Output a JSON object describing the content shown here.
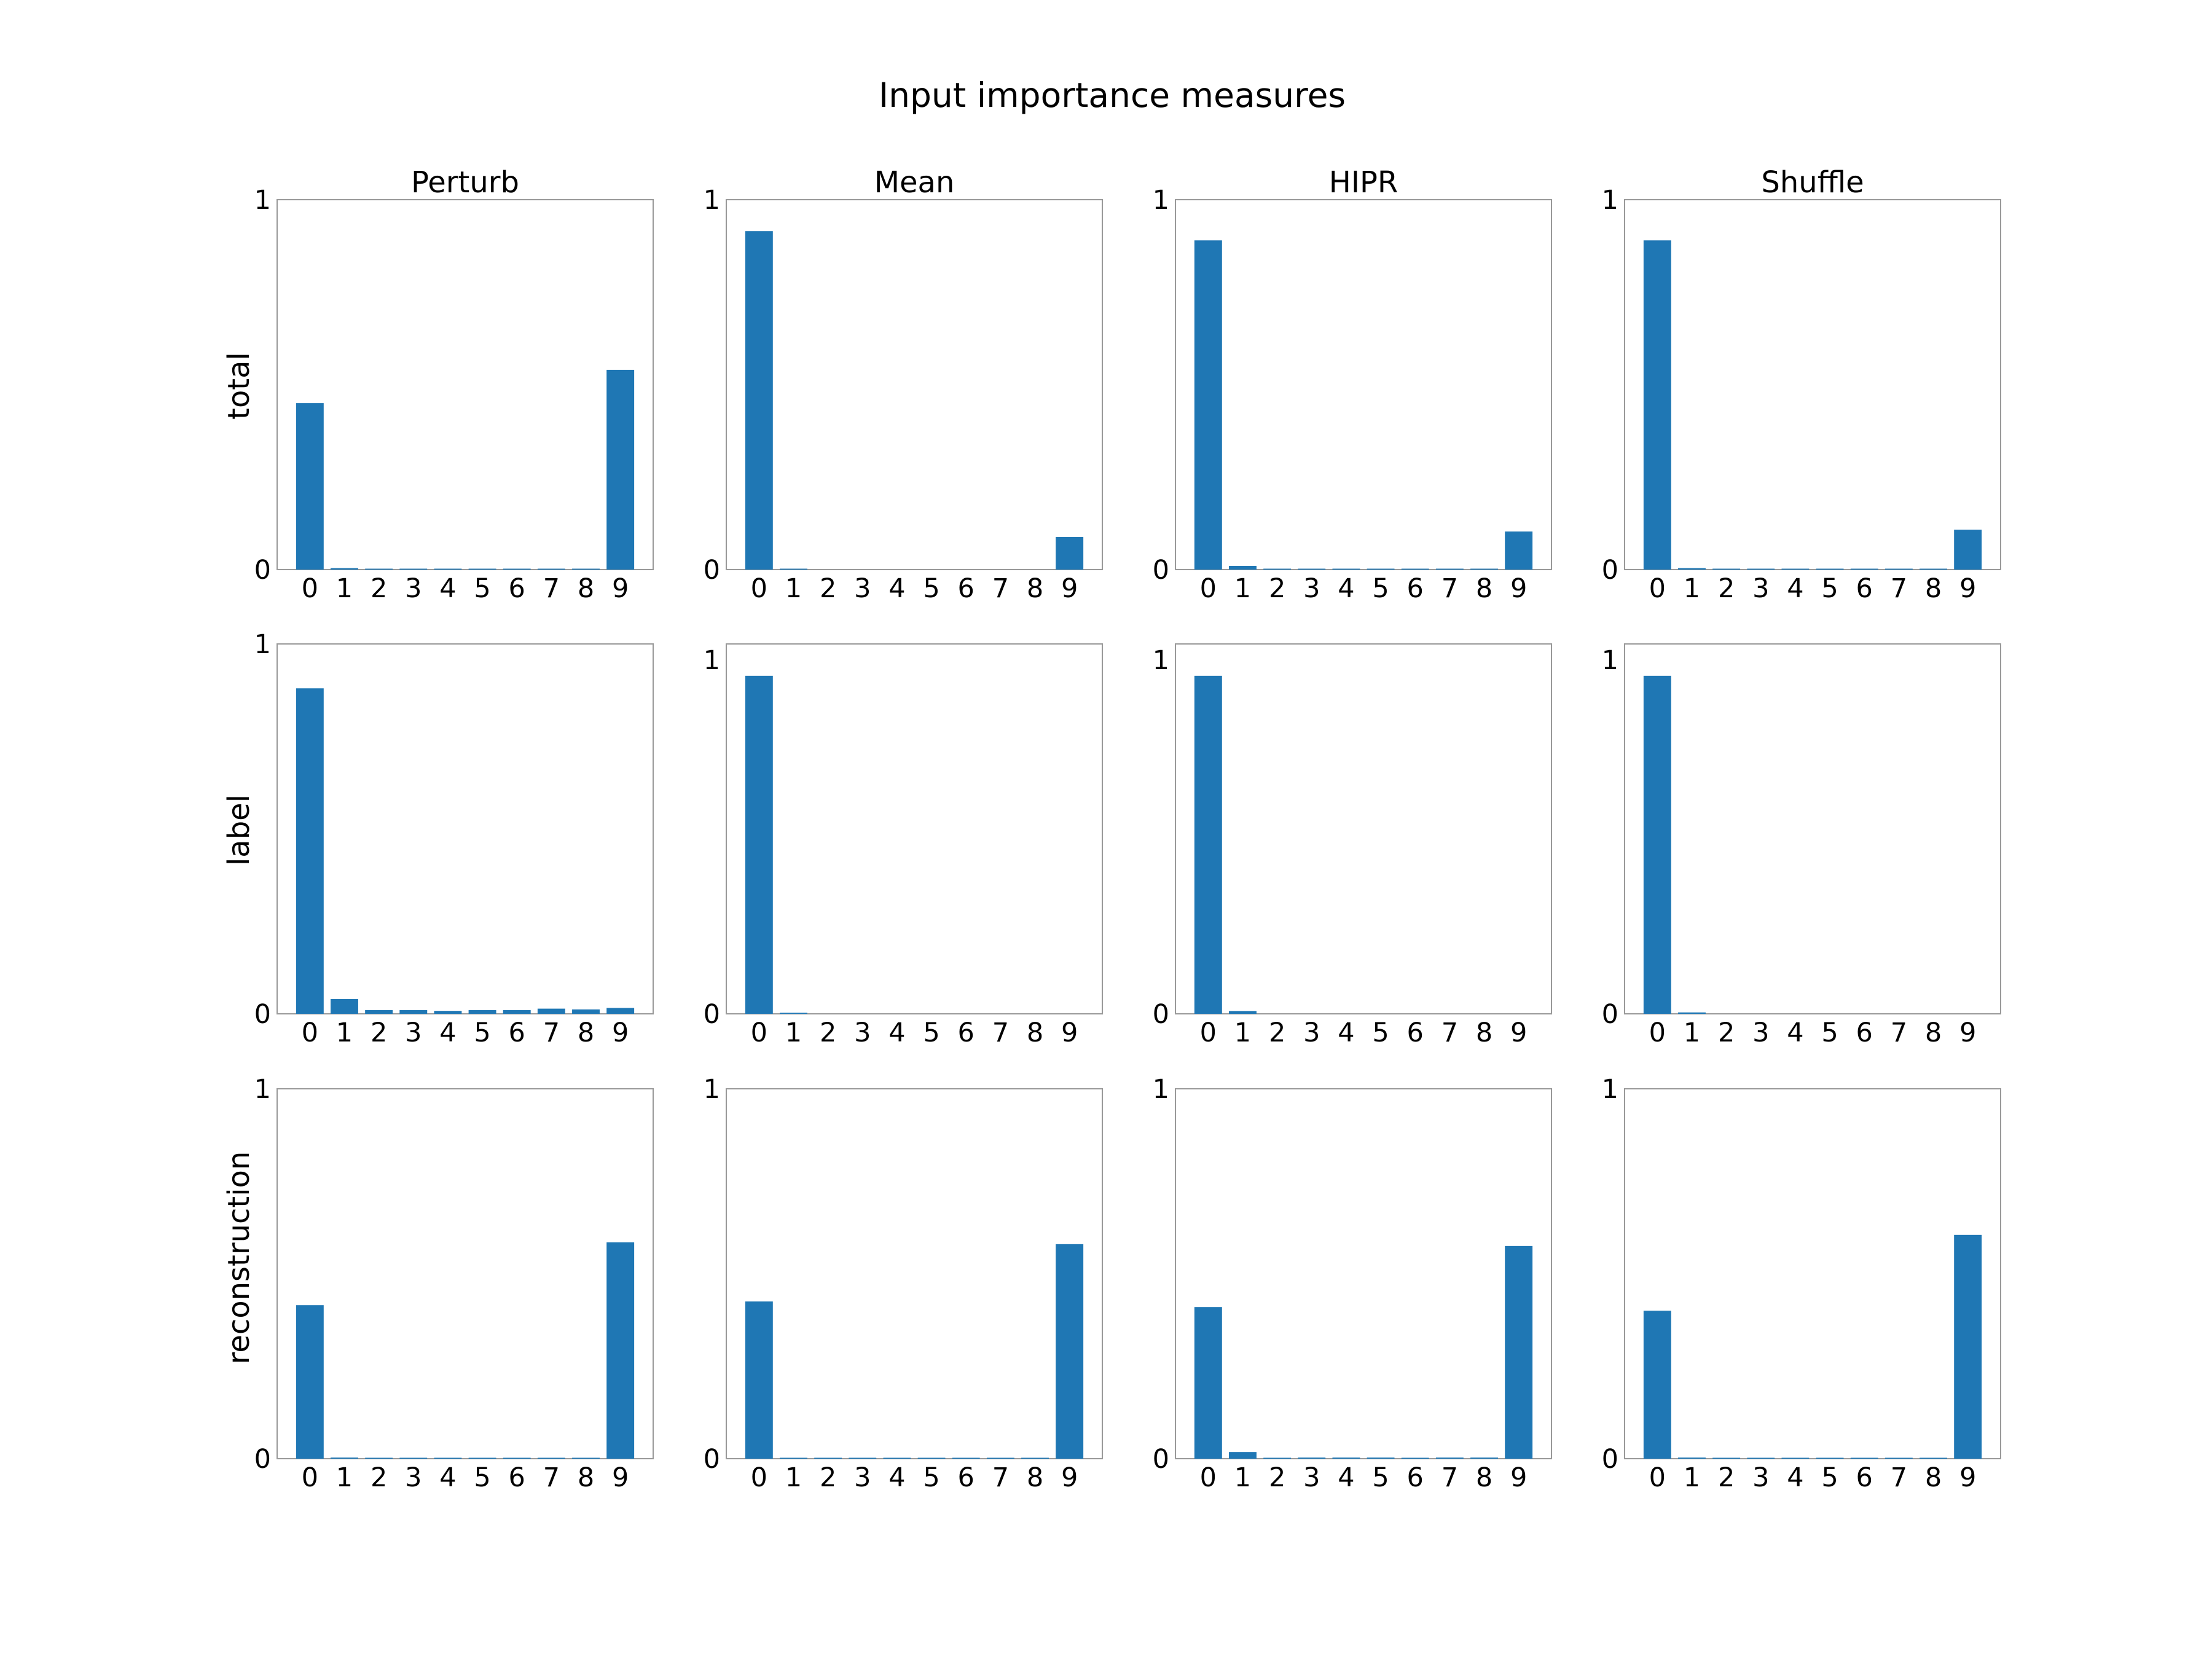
{
  "figure": {
    "title": "Input importance measures",
    "bar_color": "#1f77b4",
    "frame_color": "#999999",
    "column_titles": [
      "Perturb",
      "Mean",
      "HIPR",
      "Shuffle"
    ],
    "row_labels": [
      "total",
      "label",
      "reconstruction"
    ]
  },
  "chart_data": [
    {
      "type": "bar",
      "row": 0,
      "col": 0,
      "title": "Perturb",
      "ylabel": "total",
      "categories": [
        "0",
        "1",
        "2",
        "3",
        "4",
        "5",
        "6",
        "7",
        "8",
        "9"
      ],
      "values": [
        0.45,
        0.004,
        0.002,
        0.002,
        0.002,
        0.002,
        0.002,
        0.002,
        0.002,
        0.54
      ],
      "yticks": [
        "0",
        "1"
      ],
      "ylim": [
        0,
        1
      ]
    },
    {
      "type": "bar",
      "row": 0,
      "col": 1,
      "title": "Mean",
      "ylabel": "",
      "categories": [
        "0",
        "1",
        "2",
        "3",
        "4",
        "5",
        "6",
        "7",
        "8",
        "9"
      ],
      "values": [
        0.915,
        0.002,
        0.0,
        0.0,
        0.0,
        0.0,
        0.0,
        0.0,
        0.0,
        0.088
      ],
      "yticks": [
        "0",
        "1"
      ],
      "ylim": [
        0,
        1
      ]
    },
    {
      "type": "bar",
      "row": 0,
      "col": 2,
      "title": "HIPR",
      "ylabel": "",
      "categories": [
        "0",
        "1",
        "2",
        "3",
        "4",
        "5",
        "6",
        "7",
        "8",
        "9"
      ],
      "values": [
        0.89,
        0.01,
        0.001,
        0.001,
        0.001,
        0.001,
        0.001,
        0.001,
        0.001,
        0.103
      ],
      "yticks": [
        "0",
        "1"
      ],
      "ylim": [
        0,
        1
      ]
    },
    {
      "type": "bar",
      "row": 0,
      "col": 3,
      "title": "Shuffle",
      "ylabel": "",
      "categories": [
        "0",
        "1",
        "2",
        "3",
        "4",
        "5",
        "6",
        "7",
        "8",
        "9"
      ],
      "values": [
        0.89,
        0.004,
        0.001,
        0.001,
        0.001,
        0.001,
        0.001,
        0.001,
        0.001,
        0.108
      ],
      "yticks": [
        "0",
        "1"
      ],
      "ylim": [
        0,
        1
      ]
    },
    {
      "type": "bar",
      "row": 1,
      "col": 0,
      "title": "",
      "ylabel": "label",
      "categories": [
        "0",
        "1",
        "2",
        "3",
        "4",
        "5",
        "6",
        "7",
        "8",
        "9"
      ],
      "values": [
        0.88,
        0.04,
        0.01,
        0.01,
        0.008,
        0.01,
        0.01,
        0.014,
        0.012,
        0.016
      ],
      "yticks": [
        "0",
        "1"
      ],
      "ylim": [
        0,
        1
      ]
    },
    {
      "type": "bar",
      "row": 1,
      "col": 1,
      "title": "",
      "ylabel": "",
      "categories": [
        "0",
        "1",
        "2",
        "3",
        "4",
        "5",
        "6",
        "7",
        "8",
        "9"
      ],
      "values": [
        0.955,
        0.003,
        0.0,
        0.0,
        0.0,
        0.0,
        0.0,
        0.0,
        0.0,
        0.0
      ],
      "yticks": [
        "0",
        "1"
      ],
      "ylim": [
        0,
        1.045
      ]
    },
    {
      "type": "bar",
      "row": 1,
      "col": 2,
      "title": "",
      "ylabel": "",
      "categories": [
        "0",
        "1",
        "2",
        "3",
        "4",
        "5",
        "6",
        "7",
        "8",
        "9"
      ],
      "values": [
        0.955,
        0.008,
        0.0,
        0.0,
        0.0,
        0.0,
        0.0,
        0.0,
        0.0,
        0.0
      ],
      "yticks": [
        "0",
        "1"
      ],
      "ylim": [
        0,
        1.045
      ]
    },
    {
      "type": "bar",
      "row": 1,
      "col": 3,
      "title": "",
      "ylabel": "",
      "categories": [
        "0",
        "1",
        "2",
        "3",
        "4",
        "5",
        "6",
        "7",
        "8",
        "9"
      ],
      "values": [
        0.955,
        0.004,
        0.0,
        0.0,
        0.0,
        0.0,
        0.0,
        0.0,
        0.0,
        0.0
      ],
      "yticks": [
        "0",
        "1"
      ],
      "ylim": [
        0,
        1.045
      ]
    },
    {
      "type": "bar",
      "row": 2,
      "col": 0,
      "title": "",
      "ylabel": "reconstruction",
      "categories": [
        "0",
        "1",
        "2",
        "3",
        "4",
        "5",
        "6",
        "7",
        "8",
        "9"
      ],
      "values": [
        0.415,
        0.003,
        0.002,
        0.002,
        0.002,
        0.002,
        0.002,
        0.002,
        0.002,
        0.585
      ],
      "yticks": [
        "0",
        "1"
      ],
      "ylim": [
        0,
        1
      ]
    },
    {
      "type": "bar",
      "row": 2,
      "col": 1,
      "title": "",
      "ylabel": "",
      "categories": [
        "0",
        "1",
        "2",
        "3",
        "4",
        "5",
        "6",
        "7",
        "8",
        "9"
      ],
      "values": [
        0.425,
        0.001,
        0.001,
        0.001,
        0.001,
        0.001,
        0.001,
        0.001,
        0.001,
        0.58
      ],
      "yticks": [
        "0",
        "1"
      ],
      "ylim": [
        0,
        1
      ]
    },
    {
      "type": "bar",
      "row": 2,
      "col": 2,
      "title": "",
      "ylabel": "",
      "categories": [
        "0",
        "1",
        "2",
        "3",
        "4",
        "5",
        "6",
        "7",
        "8",
        "9"
      ],
      "values": [
        0.41,
        0.018,
        0.001,
        0.003,
        0.003,
        0.003,
        0.001,
        0.003,
        0.003,
        0.575
      ],
      "yticks": [
        "0",
        "1"
      ],
      "ylim": [
        0,
        1
      ]
    },
    {
      "type": "bar",
      "row": 2,
      "col": 3,
      "title": "",
      "ylabel": "",
      "categories": [
        "0",
        "1",
        "2",
        "3",
        "4",
        "5",
        "6",
        "7",
        "8",
        "9"
      ],
      "values": [
        0.4,
        0.003,
        0.002,
        0.002,
        0.002,
        0.002,
        0.002,
        0.002,
        0.002,
        0.605
      ],
      "yticks": [
        "0",
        "1"
      ],
      "ylim": [
        0,
        1
      ]
    }
  ]
}
